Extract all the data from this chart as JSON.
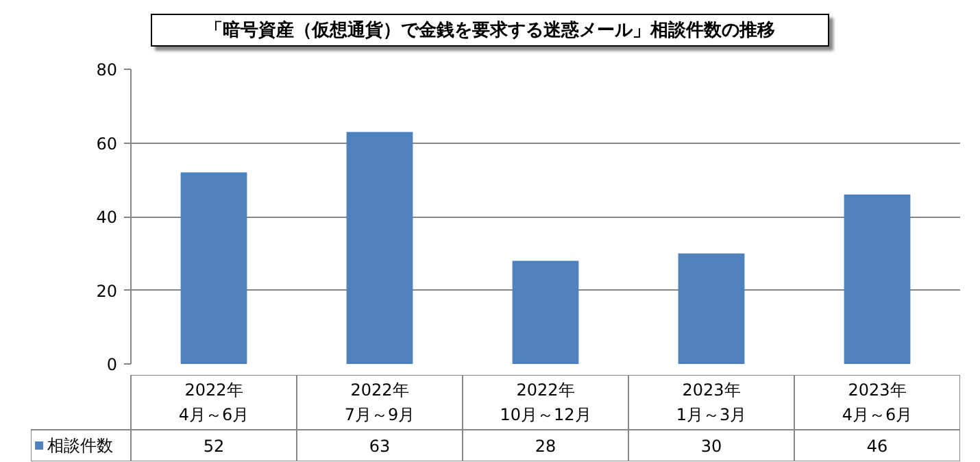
{
  "chart_data": {
    "type": "bar",
    "title": "「暗号資産（仮想通貨）で金銭を要求する迷惑メール」相談件数の推移",
    "categories": [
      "2022年\n4月～6月",
      "2022年\n7月～9月",
      "2022年\n10月～12月",
      "2023年\n1月～3月",
      "2023年\n4月～6月"
    ],
    "series": [
      {
        "name": "相談件数",
        "color": "#4f81bd",
        "values": [
          52,
          63,
          28,
          30,
          46
        ]
      }
    ],
    "ylim": [
      0,
      80
    ],
    "yticks": [
      0,
      20,
      40,
      60,
      80
    ],
    "grid": "y",
    "data_labels": true
  }
}
